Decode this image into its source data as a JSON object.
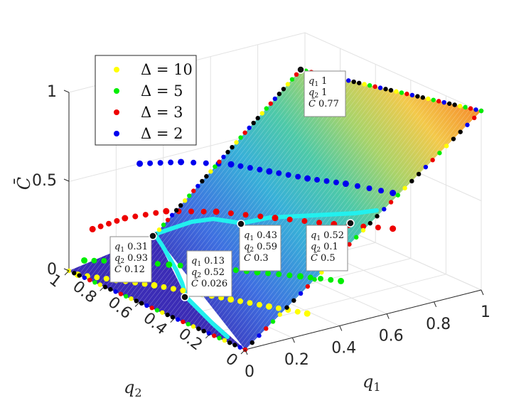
{
  "chart_data": {
    "type": "surface",
    "xlabel": "q",
    "xlabel_sub": "1",
    "ylabel": "q",
    "ylabel_sub": "2",
    "zlabel": "C̄",
    "x_ticks": [
      "0",
      "0.2",
      "0.4",
      "0.6",
      "0.8",
      "1"
    ],
    "y_ticks": [
      "0",
      "0.2",
      "0.4",
      "0.6",
      "0.8",
      "1"
    ],
    "z_ticks": [
      "0",
      "0.5",
      "1"
    ],
    "xlim": [
      0,
      1
    ],
    "ylim": [
      0,
      1
    ],
    "zlim": [
      0,
      1
    ],
    "grid": true,
    "colormap": "jet",
    "legend_position": "top-left",
    "series": [
      {
        "name": "Δ = 10",
        "color": "#ffff00",
        "x": [
          0.0,
          0.05,
          0.1,
          0.15,
          0.2,
          0.25,
          0.3
        ],
        "y": [
          0.95,
          0.8,
          0.65,
          0.5,
          0.35,
          0.2,
          0.05
        ],
        "z": [
          0.0,
          0.02,
          0.04,
          0.05,
          0.06,
          0.07,
          0.08
        ]
      },
      {
        "name": "Δ = 5",
        "color": "#00ee00",
        "x": [
          0.05,
          0.12,
          0.2,
          0.28,
          0.35,
          0.42,
          0.48
        ],
        "y": [
          0.98,
          0.85,
          0.7,
          0.55,
          0.4,
          0.25,
          0.1
        ],
        "z": [
          0.05,
          0.08,
          0.1,
          0.12,
          0.14,
          0.16,
          0.18
        ]
      },
      {
        "name": "Δ = 3",
        "color": "#ee0000",
        "x": [
          0.1,
          0.2,
          0.3,
          0.4,
          0.5,
          0.6,
          0.7
        ],
        "y": [
          1.0,
          0.95,
          0.85,
          0.7,
          0.5,
          0.3,
          0.1
        ],
        "z": [
          0.2,
          0.25,
          0.3,
          0.33,
          0.35,
          0.37,
          0.4
        ]
      },
      {
        "name": "Δ = 2",
        "color": "#0000ee",
        "x": [
          0.3,
          0.4,
          0.5,
          0.55,
          0.6,
          0.65,
          0.7
        ],
        "y": [
          1.0,
          0.9,
          0.75,
          0.6,
          0.45,
          0.3,
          0.1
        ],
        "z": [
          0.5,
          0.52,
          0.54,
          0.55,
          0.56,
          0.58,
          0.6
        ]
      }
    ],
    "datatips": [
      {
        "q1": "1",
        "q2": "1",
        "c": "0.77"
      },
      {
        "q1": "0.43",
        "q2": "0.59",
        "c": "0.3"
      },
      {
        "q1": "0.52",
        "q2": "0.1",
        "c": "0.5"
      },
      {
        "q1": "0.31",
        "q2": "0.93",
        "c": "0.12"
      },
      {
        "q1": "0.13",
        "q2": "0.52",
        "c": "0.026"
      }
    ],
    "datatip_labels": {
      "q1": "q",
      "q1_sub": "1",
      "q2": "q",
      "q2_sub": "2",
      "c": "C̄"
    }
  }
}
